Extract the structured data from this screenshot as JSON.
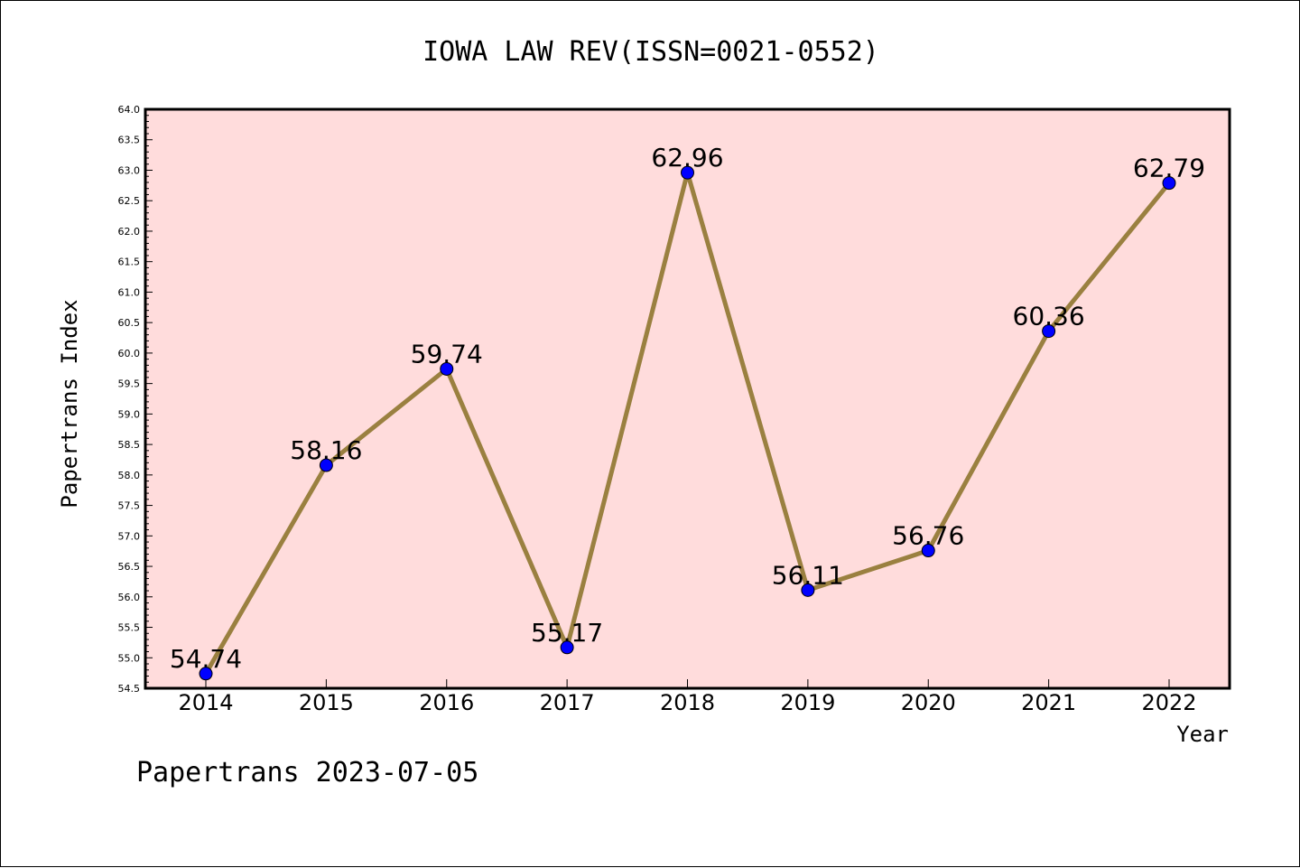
{
  "chart_data": {
    "type": "line",
    "title": "IOWA LAW REV(ISSN=0021-0552)",
    "xlabel": "Year",
    "ylabel": "Papertrans Index",
    "footer": "Papertrans 2023-07-05",
    "categories": [
      "2014",
      "2015",
      "2016",
      "2017",
      "2018",
      "2019",
      "2020",
      "2021",
      "2022"
    ],
    "values": [
      54.74,
      58.16,
      59.74,
      55.17,
      62.96,
      56.11,
      56.76,
      60.36,
      62.79
    ],
    "data_labels": [
      "54.74",
      "58.16",
      "59.74",
      "55.17",
      "62.96",
      "56.11",
      "56.76",
      "60.36",
      "62.79"
    ],
    "ylim": [
      54.5,
      64.0
    ],
    "y_ticks": [
      "54.5",
      "55.0",
      "55.5",
      "56.0",
      "56.5",
      "57.0",
      "57.5",
      "58.0",
      "58.5",
      "59.0",
      "59.5",
      "60.0",
      "60.5",
      "61.0",
      "61.5",
      "62.0",
      "62.5",
      "63.0",
      "63.5",
      "64.0"
    ],
    "grid": false,
    "colors": {
      "plot_background": "#ffdcdc",
      "line": "#9a8040",
      "marker": "#0000ff"
    }
  }
}
